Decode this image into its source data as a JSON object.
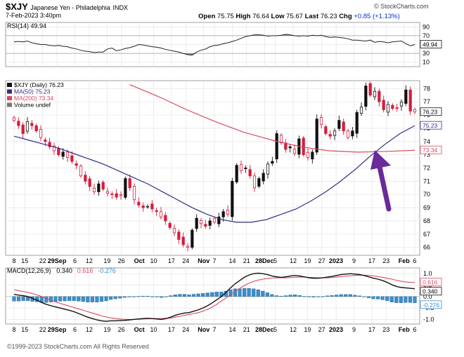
{
  "header": {
    "symbol": "$XJY",
    "name": "Japanese Yen - Philadelphia",
    "exchange": "INDX",
    "date": "7-Feb-2023 3:40pm",
    "open_label": "Open",
    "open": "75.75",
    "high_label": "High",
    "high": "76.64",
    "low_label": "Low",
    "low": "75.67",
    "last_label": "Last",
    "last": "76.23",
    "chg_label": "Chg",
    "chg": "+0.85 (+1.13%)",
    "site": "© StockCharts.com"
  },
  "footer": {
    "copyright": "©1999-2023 StockCharts.com All Rights Reserved"
  },
  "colors": {
    "up": "#111111",
    "down": "#d81b3c",
    "ma50": "#2e2e8a",
    "ma200": "#d84a60",
    "rsi": "#222222",
    "macd": "#111111",
    "signal": "#d84a60",
    "hist": "#3b8fc9",
    "arrow": "#6a2a9a",
    "grid": "#e4e4e4"
  },
  "chart_data": [
    {
      "type": "line",
      "panel": "rsi",
      "legend": "RSI(14) 49.94",
      "ylim": [
        0,
        100
      ],
      "y_ticks": [
        10,
        30,
        50,
        70,
        90
      ],
      "last_value_label": "49.94",
      "values": [
        56,
        57,
        56,
        58,
        54,
        52,
        50,
        50,
        48,
        47,
        48,
        46,
        45,
        42,
        40,
        37,
        35,
        34,
        32,
        33,
        33,
        40,
        42,
        36,
        38,
        41,
        43,
        46,
        50,
        49,
        47,
        45,
        44,
        42,
        39,
        37,
        35,
        33,
        30,
        27,
        26,
        33,
        37,
        40,
        45,
        48,
        49,
        52,
        54,
        57,
        60,
        64,
        68,
        70,
        72,
        72,
        71,
        69,
        70,
        70,
        71,
        73,
        72,
        70,
        69,
        70,
        69,
        71,
        70,
        71,
        68,
        66,
        67,
        66,
        65,
        63,
        60,
        60,
        59,
        58,
        60,
        55,
        57,
        56,
        54,
        56,
        57,
        58,
        52,
        47,
        50
      ]
    },
    {
      "type": "candlestick",
      "panel": "price",
      "legend": [
        "$XJY (Daily) 76.23",
        "MA(50) 75.23",
        "MA(200) 73.34",
        "Volume undef"
      ],
      "ylim": [
        65.4,
        78.6
      ],
      "y_ticks": [
        66,
        67,
        68,
        69,
        70,
        71,
        72,
        73,
        74,
        75,
        76,
        77,
        78
      ],
      "last_labels": [
        "76.23",
        "75.23",
        "73.34"
      ],
      "x_ticks": [
        "8",
        "15",
        "22",
        "29Sep",
        "6",
        "12",
        "19",
        "26",
        "Oct",
        "10",
        "17",
        "24",
        "Nov",
        "7",
        "14",
        "21",
        "28Dec",
        "5",
        "12",
        "19",
        "27",
        "2023",
        "9",
        "17",
        "23",
        "Feb",
        "6"
      ],
      "close": [
        75.6,
        75.2,
        74.6,
        75.5,
        75.2,
        74.8,
        74.3,
        74.0,
        73.6,
        73.3,
        73.0,
        73.2,
        72.8,
        72.5,
        72.2,
        71.4,
        71.0,
        70.6,
        70.2,
        70.8,
        70.4,
        70.1,
        70.0,
        69.8,
        69.9,
        71.2,
        70.5,
        69.6,
        69.2,
        69.0,
        69.1,
        68.9,
        68.7,
        68.3,
        68.0,
        67.5,
        67.1,
        66.6,
        66.2,
        66.0,
        67.3,
        68.2,
        67.8,
        67.6,
        68.0,
        67.9,
        68.3,
        68.7,
        68.5,
        71.0,
        72.2,
        71.8,
        72.0,
        71.4,
        70.5,
        71.2,
        71.6,
        72.3,
        72.5,
        74.6,
        73.9,
        73.4,
        73.6,
        73.1,
        74.2,
        73.0,
        72.8,
        73.2,
        75.7,
        75.3,
        74.6,
        74.4,
        74.8,
        75.6,
        74.8,
        74.3,
        74.8,
        76.2,
        76.6,
        78.2,
        77.5,
        77.8,
        77.0,
        76.4,
        76.8,
        76.5,
        76.5,
        77.0,
        77.9,
        76.3,
        76.23
      ],
      "ma50": {
        "x_start": 0,
        "values": [
          74.4,
          74.1,
          73.8,
          73.5,
          73.1,
          72.7,
          72.3,
          71.8,
          71.3,
          70.8,
          70.2,
          69.6,
          69.0,
          68.5,
          68.1,
          67.9,
          67.9,
          68.1,
          68.5,
          68.9,
          69.5,
          70.2,
          71.0,
          71.9,
          72.9,
          73.8,
          74.6,
          75.2
        ]
      },
      "ma200": {
        "x_start": 26,
        "values": [
          78.3,
          77.4,
          76.4,
          75.5,
          74.7,
          74.1,
          73.6,
          73.3,
          73.2,
          73.25,
          73.34
        ]
      },
      "annotation": "arrow pointing to MA(50) crossing above MA(200)"
    },
    {
      "type": "bar+line",
      "panel": "macd",
      "legend": [
        "MACD(12,26,9)",
        "0.340",
        "0.616",
        "-0.276"
      ],
      "ylim": [
        -1.2,
        1.25
      ],
      "y_ticks": [
        -1.0,
        -0.5,
        0.0,
        0.5,
        1.0
      ],
      "last_labels": [
        "0.616",
        "0.340",
        "-0.276"
      ],
      "macd": [
        0.1,
        0.06,
        0.04,
        0.0,
        -0.08,
        -0.16,
        -0.26,
        -0.34,
        -0.4,
        -0.45,
        -0.5,
        -0.55,
        -0.6,
        -0.66,
        -0.74,
        -0.82,
        -0.9,
        -0.96,
        -1.02,
        -1.06,
        -1.08,
        -1.06,
        -1.06,
        -1.05,
        -1.04,
        -1.02,
        -1.0,
        -0.98,
        -0.96,
        -0.95,
        -0.96,
        -0.98,
        -1.0,
        -0.96,
        -0.9,
        -0.82,
        -0.76,
        -0.72,
        -0.7,
        -0.64,
        -0.58,
        -0.5,
        -0.4,
        -0.28,
        -0.14,
        0.0,
        0.18,
        0.38,
        0.56,
        0.7,
        0.84,
        0.94,
        1.0,
        1.02,
        1.0,
        0.96,
        0.9,
        0.86,
        0.84,
        0.86,
        0.9,
        0.92,
        0.9,
        0.86,
        0.82,
        0.8,
        0.8,
        0.82,
        0.85,
        0.88,
        0.92,
        0.96,
        0.98,
        1.0,
        0.98,
        0.96,
        0.92,
        0.86,
        0.8,
        0.76,
        0.7,
        0.62,
        0.52,
        0.44,
        0.4,
        0.38,
        0.36,
        0.34
      ],
      "signal": [
        0.3,
        0.26,
        0.22,
        0.18,
        0.13,
        0.07,
        0.0,
        -0.08,
        -0.16,
        -0.23,
        -0.3,
        -0.36,
        -0.42,
        -0.48,
        -0.54,
        -0.6,
        -0.66,
        -0.72,
        -0.78,
        -0.84,
        -0.89,
        -0.93,
        -0.96,
        -0.98,
        -1.0,
        -1.0,
        -1.0,
        -0.99,
        -0.98,
        -0.97,
        -0.96,
        -0.96,
        -0.96,
        -0.95,
        -0.94,
        -0.9,
        -0.86,
        -0.82,
        -0.78,
        -0.74,
        -0.7,
        -0.64,
        -0.56,
        -0.46,
        -0.34,
        -0.2,
        -0.06,
        0.08,
        0.22,
        0.36,
        0.48,
        0.58,
        0.66,
        0.72,
        0.76,
        0.79,
        0.81,
        0.82,
        0.82,
        0.82,
        0.83,
        0.84,
        0.85,
        0.85,
        0.84,
        0.83,
        0.82,
        0.82,
        0.82,
        0.83,
        0.85,
        0.87,
        0.89,
        0.91,
        0.92,
        0.93,
        0.93,
        0.92,
        0.9,
        0.87,
        0.84,
        0.8,
        0.76,
        0.71,
        0.67,
        0.64,
        0.62,
        0.616
      ]
    }
  ]
}
